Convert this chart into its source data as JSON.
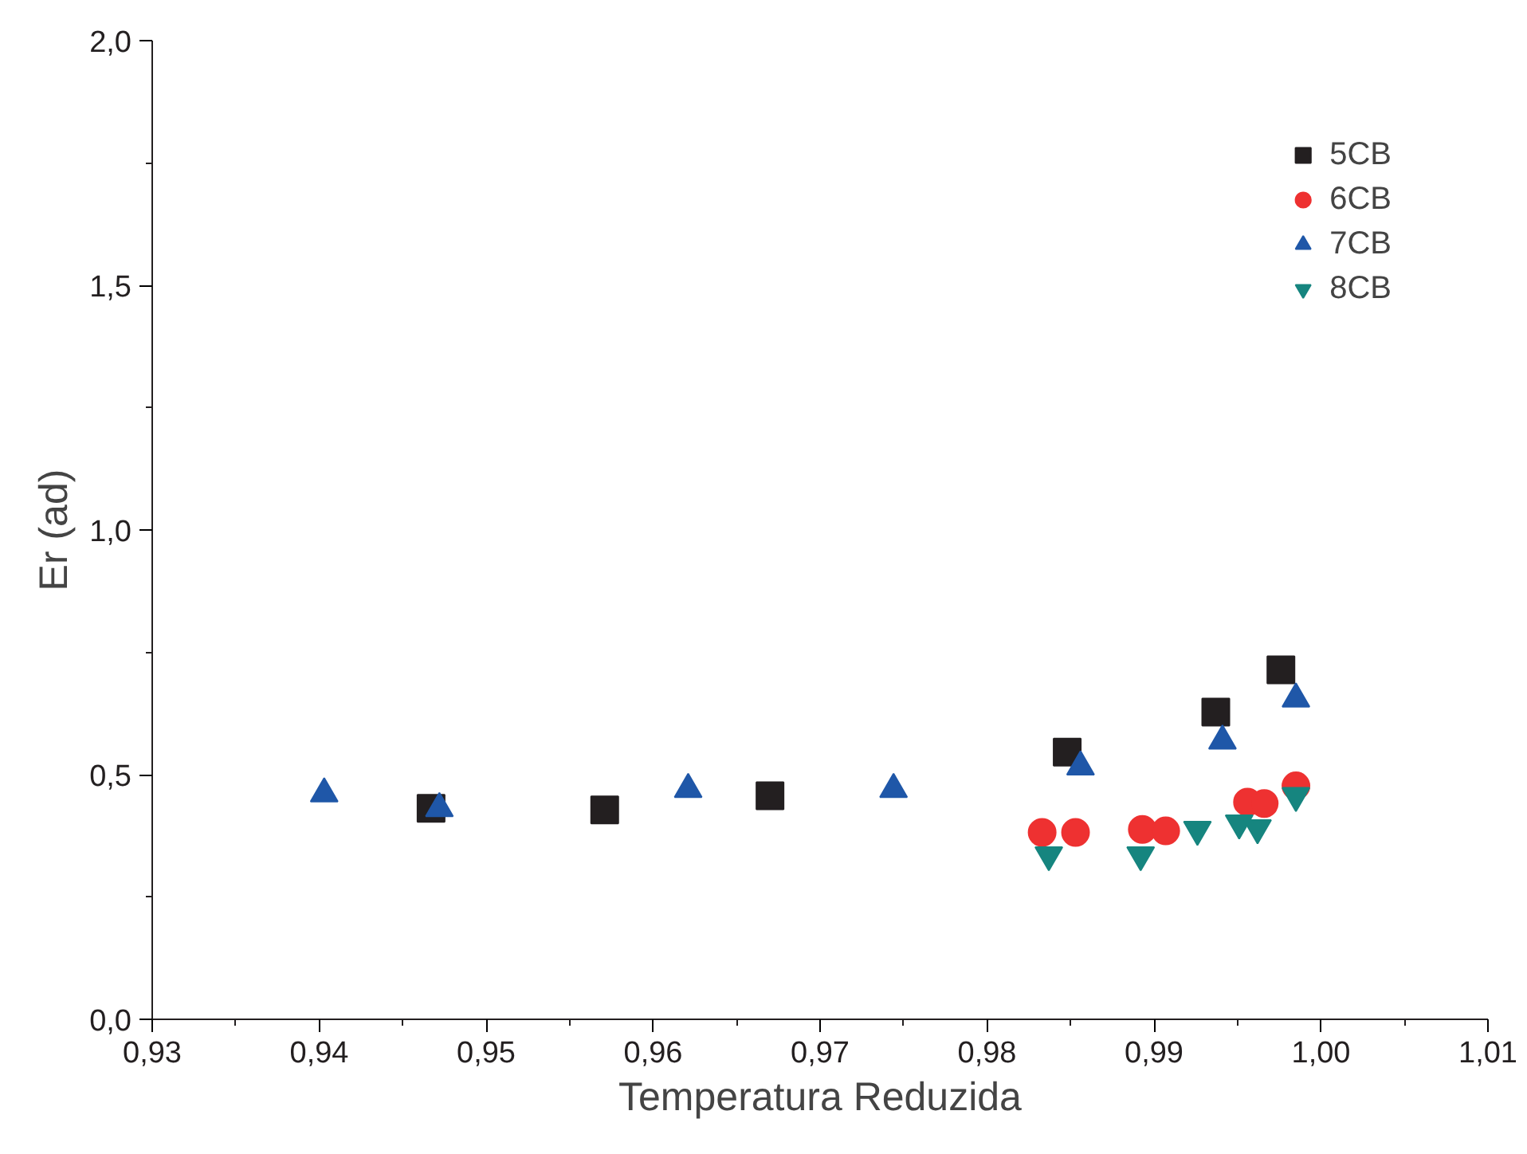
{
  "chart_data": {
    "type": "scatter",
    "xlabel": "Temperatura Reduzida",
    "ylabel": "Er (ad)",
    "xlim": [
      0.93,
      1.01
    ],
    "ylim": [
      0,
      2.0
    ],
    "xticks": [
      {
        "value": 0.93,
        "label": "0,93"
      },
      {
        "value": 0.94,
        "label": "0,94"
      },
      {
        "value": 0.95,
        "label": "0,95"
      },
      {
        "value": 0.96,
        "label": "0,96"
      },
      {
        "value": 0.97,
        "label": "0,97"
      },
      {
        "value": 0.98,
        "label": "0,98"
      },
      {
        "value": 0.99,
        "label": "0,99"
      },
      {
        "value": 1.0,
        "label": "1,00"
      },
      {
        "value": 1.01,
        "label": "1,01"
      }
    ],
    "yticks": [
      {
        "value": 0,
        "label": "0,0"
      },
      {
        "value": 0.5,
        "label": "0,5"
      },
      {
        "value": 1.0,
        "label": "1,0"
      },
      {
        "value": 1.5,
        "label": "1,5"
      },
      {
        "value": 2.0,
        "label": "2,0"
      }
    ],
    "grid": false,
    "legend": "top right",
    "series": [
      {
        "name": "5CB",
        "color": "#231f20",
        "marker": "square",
        "x": [
          0.9467,
          0.9571,
          0.967,
          0.9848,
          0.9937,
          0.9976
        ],
        "values": [
          0.431,
          0.428,
          0.457,
          0.546,
          0.628,
          0.714
        ]
      },
      {
        "name": "6CB",
        "color": "#ee3131",
        "marker": "circle",
        "x": [
          0.9833,
          0.9853,
          0.9893,
          0.9907,
          0.9956,
          0.9966,
          0.9985
        ],
        "values": [
          0.382,
          0.382,
          0.388,
          0.385,
          0.444,
          0.441,
          0.477
        ]
      },
      {
        "name": "7CB",
        "color": "#1f57a8",
        "marker": "triangle",
        "x": [
          0.9403,
          0.9472,
          0.9621,
          0.9744,
          0.9856,
          0.9941,
          0.9985
        ],
        "values": [
          0.461,
          0.431,
          0.47,
          0.47,
          0.516,
          0.569,
          0.655
        ]
      },
      {
        "name": "8CB",
        "color": "#16857f",
        "marker": "triangle",
        "x": [
          0.9837,
          0.9892,
          0.9926,
          0.9951,
          0.9962,
          0.9985
        ],
        "values": [
          0.336,
          0.336,
          0.388,
          0.401,
          0.391,
          0.457
        ]
      }
    ]
  }
}
